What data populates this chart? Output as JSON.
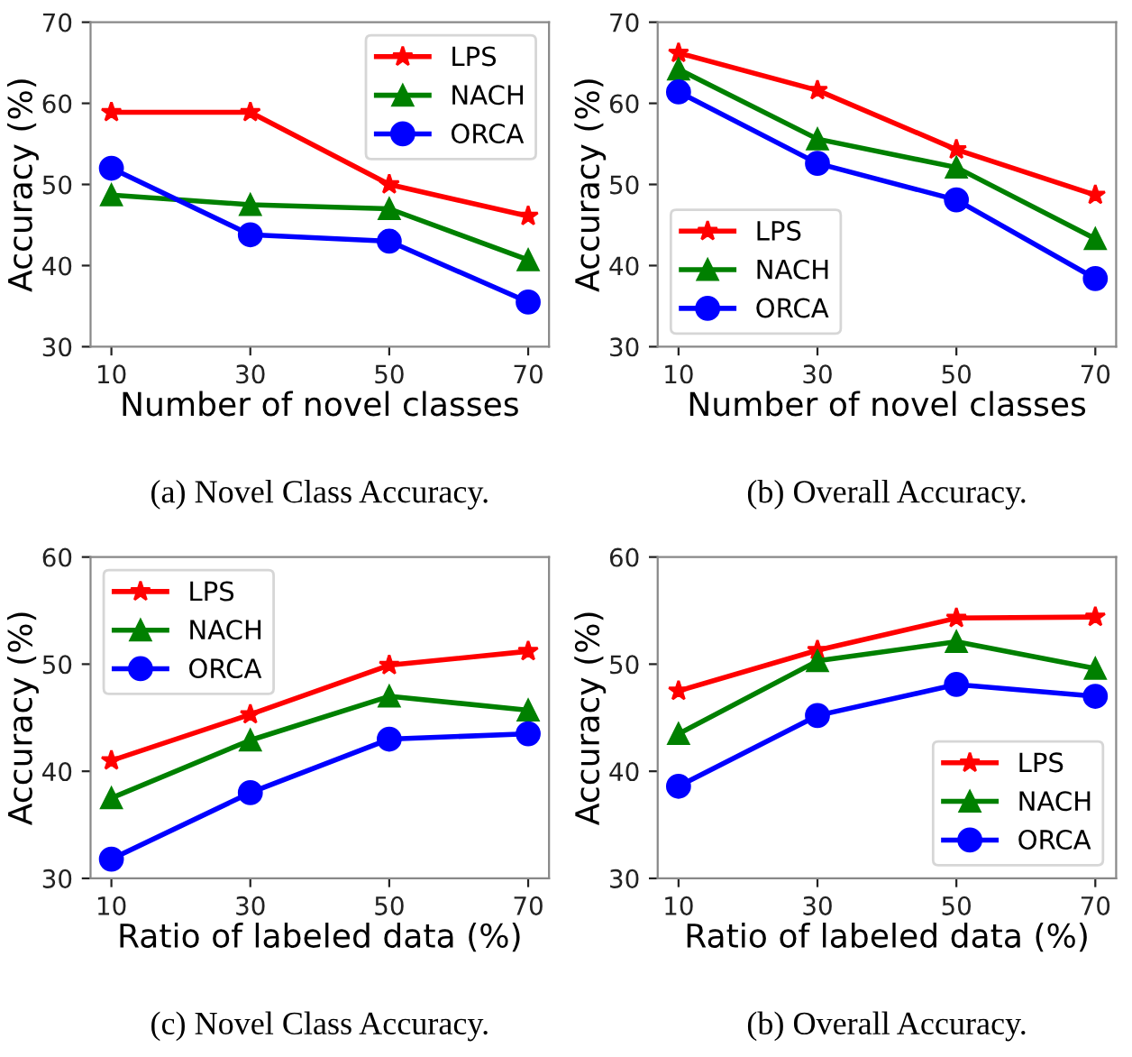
{
  "chart_data": [
    {
      "type": "line",
      "xlabel": "Number of novel classes",
      "ylabel": "Accuracy (%)",
      "annotations": [
        "(a) Novel Class Accuracy."
      ],
      "x": [
        10,
        30,
        50,
        70
      ],
      "xlim": [
        7,
        73
      ],
      "xticks": [
        10,
        30,
        50,
        70
      ],
      "ylim": [
        30,
        70
      ],
      "yticks": [
        30,
        40,
        50,
        60,
        70
      ],
      "legend": "top right",
      "grid": false,
      "series": [
        {
          "name": "LPS",
          "color": "#ff0000",
          "marker": "star",
          "values": [
            58.9,
            58.9,
            50.0,
            46.1
          ]
        },
        {
          "name": "NACH",
          "color": "#008000",
          "marker": "triangle",
          "values": [
            48.7,
            47.5,
            47.0,
            40.7
          ]
        },
        {
          "name": "ORCA",
          "color": "#0000ff",
          "marker": "circle",
          "values": [
            52.0,
            43.8,
            43.0,
            35.5
          ]
        }
      ]
    },
    {
      "type": "line",
      "xlabel": "Number of novel classes",
      "ylabel": "Accuracy (%)",
      "annotations": [
        "(b) Overall Accuracy."
      ],
      "x": [
        10,
        30,
        50,
        70
      ],
      "xlim": [
        7,
        73
      ],
      "xticks": [
        10,
        30,
        50,
        70
      ],
      "ylim": [
        30,
        70
      ],
      "yticks": [
        30,
        40,
        50,
        60,
        70
      ],
      "legend": "bottom left",
      "grid": false,
      "series": [
        {
          "name": "LPS",
          "color": "#ff0000",
          "marker": "star",
          "values": [
            66.2,
            61.6,
            54.3,
            48.7
          ]
        },
        {
          "name": "NACH",
          "color": "#008000",
          "marker": "triangle",
          "values": [
            64.2,
            55.6,
            52.1,
            43.3
          ]
        },
        {
          "name": "ORCA",
          "color": "#0000ff",
          "marker": "circle",
          "values": [
            61.4,
            52.6,
            48.1,
            38.4
          ]
        }
      ]
    },
    {
      "type": "line",
      "xlabel": "Ratio of labeled data (%)",
      "ylabel": "Accuracy (%)",
      "annotations": [
        "(c) Novel Class Accuracy."
      ],
      "x": [
        10,
        30,
        50,
        70
      ],
      "xlim": [
        7,
        73
      ],
      "xticks": [
        10,
        30,
        50,
        70
      ],
      "ylim": [
        30,
        60
      ],
      "yticks": [
        30,
        40,
        50,
        60
      ],
      "legend": "top left",
      "grid": false,
      "series": [
        {
          "name": "LPS",
          "color": "#ff0000",
          "marker": "star",
          "values": [
            41.0,
            45.3,
            49.9,
            51.2
          ]
        },
        {
          "name": "NACH",
          "color": "#008000",
          "marker": "triangle",
          "values": [
            37.5,
            42.9,
            47.0,
            45.7
          ]
        },
        {
          "name": "ORCA",
          "color": "#0000ff",
          "marker": "circle",
          "values": [
            31.8,
            38.0,
            43.0,
            43.5
          ]
        }
      ]
    },
    {
      "type": "line",
      "xlabel": "Ratio of labeled data (%)",
      "ylabel": "Accuracy (%)",
      "annotations": [
        "(b) Overall Accuracy."
      ],
      "x": [
        10,
        30,
        50,
        70
      ],
      "xlim": [
        7,
        73
      ],
      "xticks": [
        10,
        30,
        50,
        70
      ],
      "ylim": [
        30,
        60
      ],
      "yticks": [
        30,
        40,
        50,
        60
      ],
      "legend": "bottom right",
      "grid": false,
      "series": [
        {
          "name": "LPS",
          "color": "#ff0000",
          "marker": "star",
          "values": [
            47.5,
            51.3,
            54.3,
            54.4
          ]
        },
        {
          "name": "NACH",
          "color": "#008000",
          "marker": "triangle",
          "values": [
            43.5,
            50.3,
            52.1,
            49.6
          ]
        },
        {
          "name": "ORCA",
          "color": "#0000ff",
          "marker": "circle",
          "values": [
            38.6,
            45.2,
            48.1,
            47.0
          ]
        }
      ]
    }
  ]
}
